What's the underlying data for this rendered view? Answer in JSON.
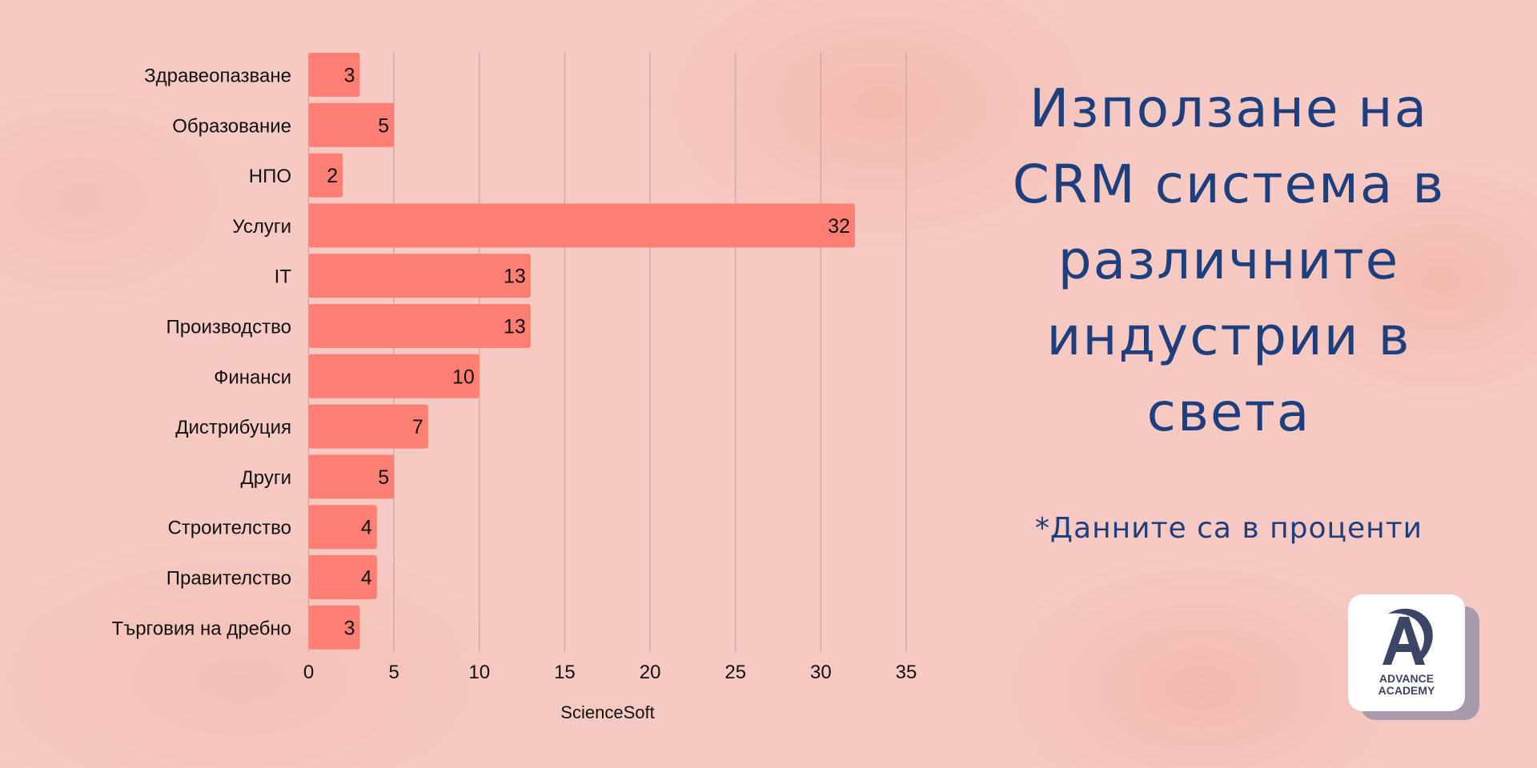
{
  "chart_data": {
    "type": "bar",
    "orientation": "horizontal",
    "categories": [
      "Здравеопазване",
      "Образование",
      "НПО",
      "Услуги",
      "IT",
      "Производство",
      "Финанси",
      "Дистрибуция",
      "Други",
      "Строителство",
      "Правителство",
      "Търговия на дребно"
    ],
    "values": [
      3,
      5,
      2,
      32,
      13,
      13,
      10,
      7,
      5,
      4,
      4,
      3
    ],
    "xlim": [
      0,
      35
    ],
    "xticks": [
      0,
      5,
      10,
      15,
      20,
      25,
      30,
      35
    ],
    "xlabel": "ScienceSoft",
    "grid": true,
    "bar_color": "#ff7f74"
  },
  "title_lines": [
    "Използане на",
    "CRM система в",
    "различните",
    "индустрии в",
    "света"
  ],
  "note": "*Данните са в проценти",
  "logo": {
    "line1": "ADVANCE",
    "line2": "ACADEMY"
  },
  "colors": {
    "title": "#1d3f7e",
    "bar": "#ff7f74",
    "grid": "#c9a7a3"
  }
}
